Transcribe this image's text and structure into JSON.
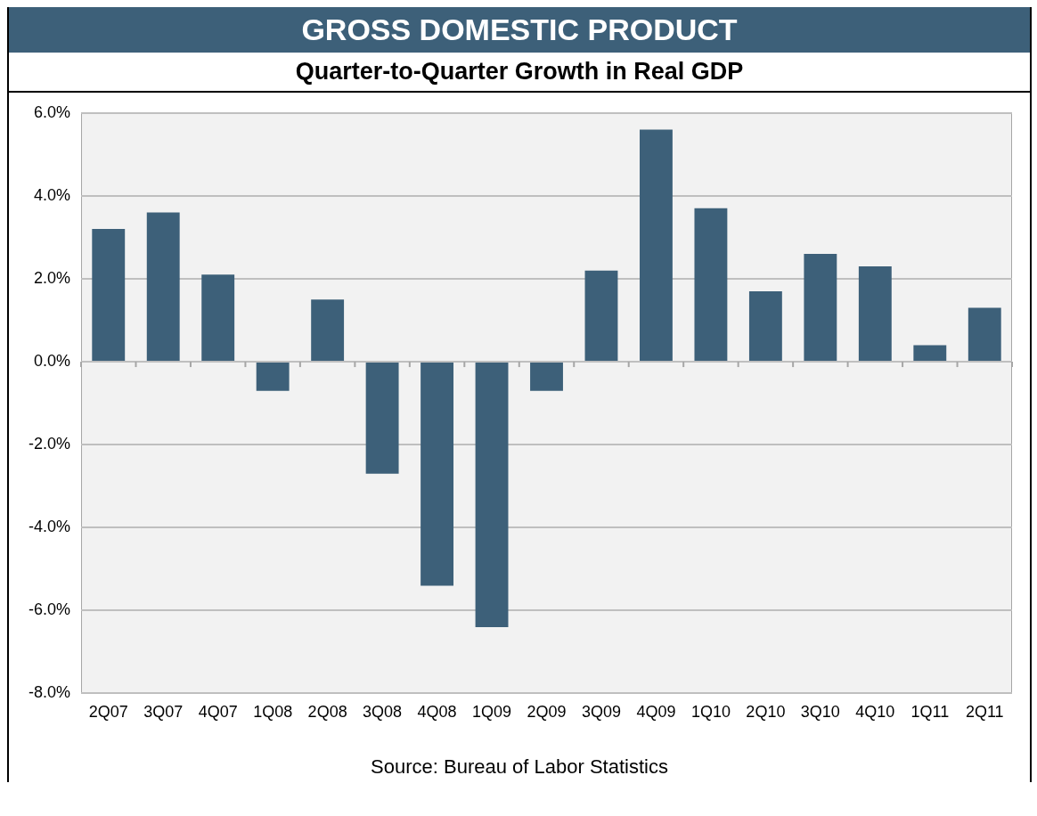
{
  "chart_data": {
    "type": "bar",
    "title": "GROSS DOMESTIC PRODUCT",
    "subtitle": "Quarter-to-Quarter Growth in Real GDP",
    "categories": [
      "2Q07",
      "3Q07",
      "4Q07",
      "1Q08",
      "2Q08",
      "3Q08",
      "4Q08",
      "1Q09",
      "2Q09",
      "3Q09",
      "4Q09",
      "1Q10",
      "2Q10",
      "3Q10",
      "4Q10",
      "1Q11",
      "2Q11"
    ],
    "values": [
      3.2,
      3.6,
      2.1,
      -0.7,
      1.5,
      -2.7,
      -5.4,
      -6.4,
      -0.7,
      2.2,
      5.6,
      3.7,
      1.7,
      2.6,
      2.3,
      0.4,
      1.3
    ],
    "color": "#3d6079",
    "ylim": [
      -8,
      6
    ],
    "yticks": [
      {
        "value": -8,
        "label": "-8.0%"
      },
      {
        "value": -6,
        "label": "-6.0%"
      },
      {
        "value": -4,
        "label": "-4.0%"
      },
      {
        "value": -2,
        "label": "-2.0%"
      },
      {
        "value": 0,
        "label": "0.0%"
      },
      {
        "value": 2,
        "label": "2.0%"
      },
      {
        "value": 4,
        "label": "4.0%"
      },
      {
        "value": 6,
        "label": "6.0%"
      }
    ],
    "grid": "y",
    "legend": false,
    "annotations": [
      "Source: Bureau of Labor Statistics"
    ]
  }
}
